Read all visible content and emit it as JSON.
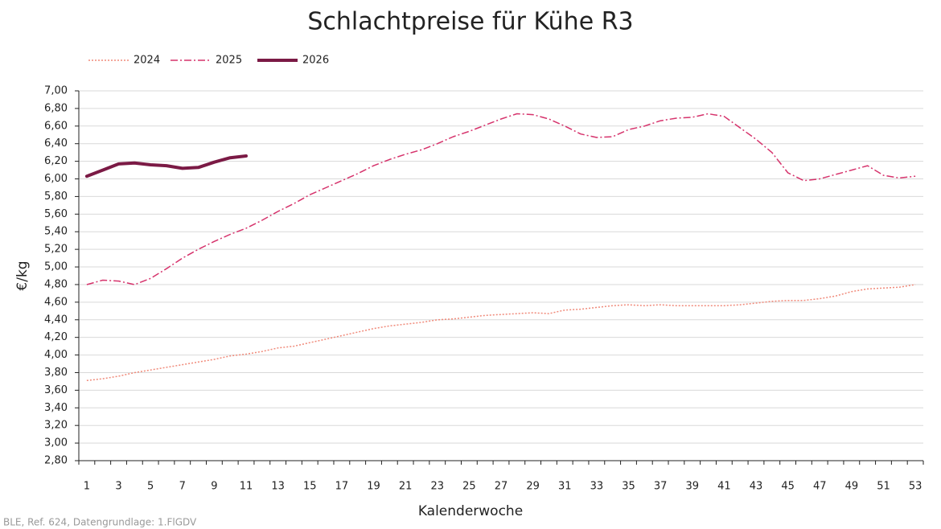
{
  "chart_data": {
    "type": "line",
    "title": "Schlachtpreise für Kühe R3",
    "x_label": "Kalenderwoche",
    "y_label": "€/kg",
    "source": "BLE, Ref. 624, Datengrundlage: 1.FlGDV",
    "categories": [
      "1",
      null,
      "3",
      null,
      "5",
      null,
      "7",
      null,
      "9",
      null,
      "11",
      null,
      "13",
      null,
      "15",
      null,
      "17",
      null,
      "19",
      null,
      "21",
      null,
      "23",
      null,
      "25",
      null,
      "27",
      null,
      "29",
      null,
      "31",
      null,
      "33",
      null,
      "35",
      null,
      "37",
      null,
      "39",
      null,
      "41",
      null,
      "43",
      null,
      "45",
      null,
      "47",
      null,
      "49",
      null,
      "51",
      null,
      "53"
    ],
    "ylim": [
      2.8,
      7.0
    ],
    "yticks": [
      {
        "value": 2.8,
        "label": "2,80"
      },
      {
        "value": 3.0,
        "label": "3,00"
      },
      {
        "value": 3.2,
        "label": "3,20"
      },
      {
        "value": 3.4,
        "label": "3,40"
      },
      {
        "value": 3.6,
        "label": "3,60"
      },
      {
        "value": 3.8,
        "label": "3,80"
      },
      {
        "value": 4.0,
        "label": "4,00"
      },
      {
        "value": 4.2,
        "label": "4,20"
      },
      {
        "value": 4.4,
        "label": "4,40"
      },
      {
        "value": 4.6,
        "label": "4,60"
      },
      {
        "value": 4.8,
        "label": "4,80"
      },
      {
        "value": 5.0,
        "label": "5,00"
      },
      {
        "value": 5.2,
        "label": "5,20"
      },
      {
        "value": 5.4,
        "label": "5,40"
      },
      {
        "value": 5.6,
        "label": "5,60"
      },
      {
        "value": 5.8,
        "label": "5,80"
      },
      {
        "value": 6.0,
        "label": "6,00"
      },
      {
        "value": 6.2,
        "label": "6,20"
      },
      {
        "value": 6.4,
        "label": "6,40"
      },
      {
        "value": 6.6,
        "label": "6,60"
      },
      {
        "value": 6.8,
        "label": "6,80"
      },
      {
        "value": 7.0,
        "label": "7,00"
      }
    ],
    "grid": true,
    "legend": "top-left",
    "series": [
      {
        "name": "2024",
        "color": "#f08a7a",
        "line_style": "dotted",
        "line_width": 1.5,
        "values": [
          3.71,
          3.73,
          3.76,
          3.8,
          3.83,
          3.86,
          3.89,
          3.92,
          3.95,
          3.99,
          4.01,
          4.04,
          4.08,
          4.1,
          4.14,
          4.18,
          4.22,
          4.26,
          4.3,
          4.33,
          4.35,
          4.37,
          4.4,
          4.41,
          4.43,
          4.45,
          4.46,
          4.47,
          4.48,
          4.47,
          4.51,
          4.52,
          4.54,
          4.56,
          4.57,
          4.56,
          4.57,
          4.56,
          4.56,
          4.56,
          4.56,
          4.57,
          4.59,
          4.61,
          4.62,
          4.62,
          4.64,
          4.67,
          4.72,
          4.75,
          4.76,
          4.77,
          4.8
        ]
      },
      {
        "name": "2025",
        "color": "#d6336c",
        "line_style": "dashdot",
        "line_width": 1.5,
        "values": [
          4.8,
          4.85,
          4.84,
          4.8,
          4.87,
          4.98,
          5.1,
          5.2,
          5.29,
          5.37,
          5.44,
          5.53,
          5.63,
          5.72,
          5.82,
          5.9,
          5.98,
          6.06,
          6.15,
          6.22,
          6.28,
          6.33,
          6.4,
          6.48,
          6.54,
          6.61,
          6.68,
          6.74,
          6.73,
          6.68,
          6.6,
          6.51,
          6.47,
          6.48,
          6.56,
          6.6,
          6.66,
          6.69,
          6.7,
          6.74,
          6.71,
          6.58,
          6.45,
          6.3,
          6.07,
          5.98,
          6.0,
          6.05,
          6.1,
          6.15,
          6.04,
          6.01,
          6.03
        ]
      },
      {
        "name": "2026",
        "color": "#7b1a45",
        "line_style": "solid",
        "line_width": 4,
        "values": [
          6.03,
          6.1,
          6.17,
          6.18,
          6.16,
          6.15,
          6.12,
          6.13,
          6.19,
          6.24,
          6.26,
          null,
          null,
          null,
          null,
          null,
          null,
          null,
          null,
          null,
          null,
          null,
          null,
          null,
          null,
          null,
          null,
          null,
          null,
          null,
          null,
          null,
          null,
          null,
          null,
          null,
          null,
          null,
          null,
          null,
          null,
          null,
          null,
          null,
          null,
          null,
          null,
          null,
          null,
          null,
          null,
          null,
          null
        ]
      }
    ]
  }
}
